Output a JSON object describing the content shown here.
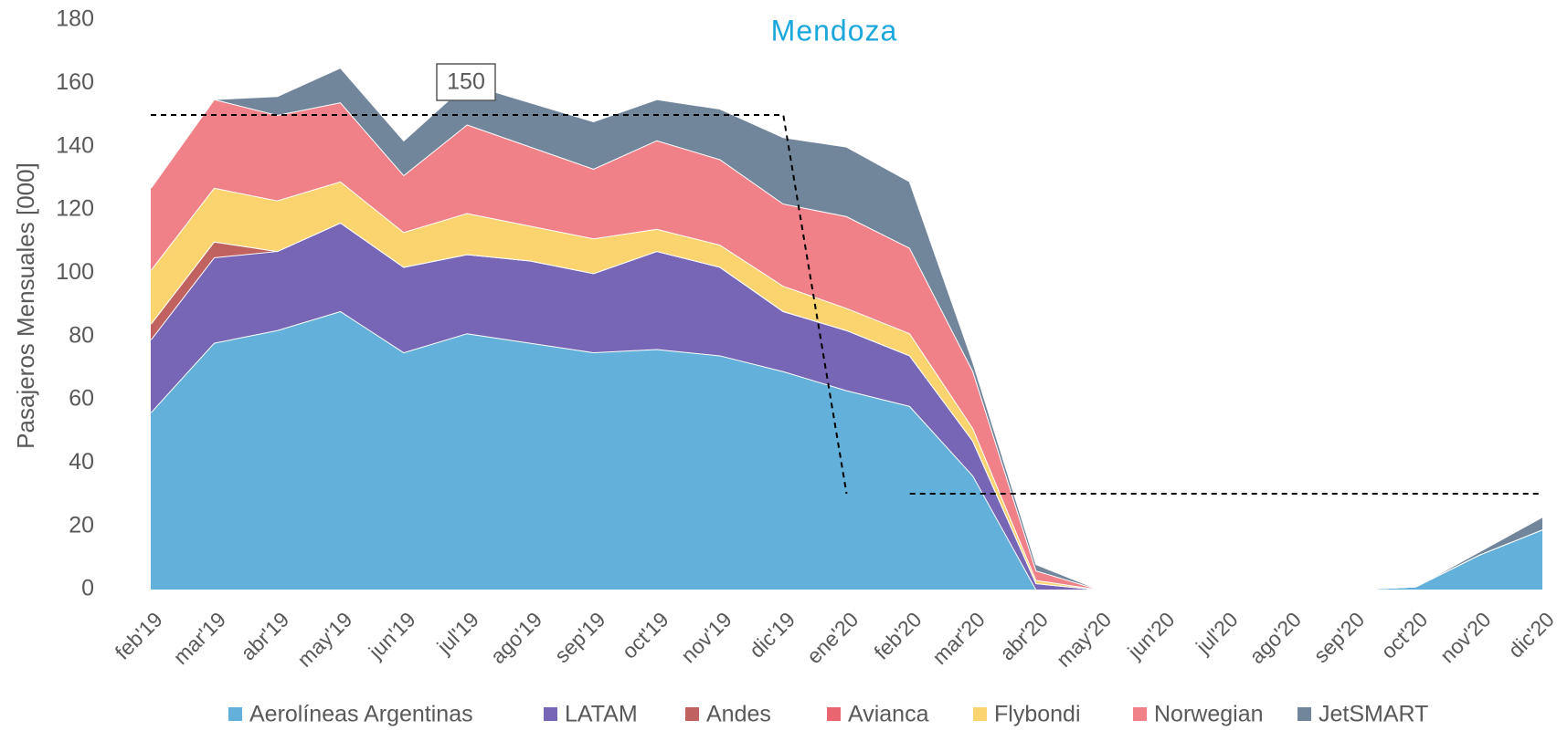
{
  "chart_data": {
    "type": "stacked_area",
    "title": "Mendoza",
    "y_label": "Pasajeros Mensuales [000]",
    "categories": [
      "feb'19",
      "mar'19",
      "abr'19",
      "may'19",
      "jun'19",
      "jul'19",
      "ago'19",
      "sep'19",
      "oct'19",
      "nov'19",
      "dic'19",
      "ene'20",
      "feb'20",
      "mar'20",
      "abr'20",
      "may'20",
      "jun'20",
      "jul'20",
      "ago'20",
      "sep'20",
      "oct'20",
      "nov'20",
      "dic'20"
    ],
    "series": [
      {
        "name": "Aerolíneas Argentinas",
        "color": "#63b1da",
        "values": [
          56,
          78,
          82,
          88,
          75,
          81,
          78,
          75,
          76,
          74,
          69,
          63,
          58,
          36,
          0,
          0,
          0,
          0,
          0,
          0,
          1,
          11,
          19
        ]
      },
      {
        "name": "LATAM",
        "color": "#7765b5",
        "values": [
          23,
          27,
          25,
          28,
          27,
          25,
          26,
          25,
          31,
          28,
          19,
          19,
          16,
          11,
          2,
          0,
          0,
          0,
          0,
          0,
          0,
          0,
          0
        ]
      },
      {
        "name": "Andes",
        "color": "#c0625f",
        "values": [
          5,
          5,
          0,
          0,
          0,
          0,
          0,
          0,
          0,
          0,
          0,
          0,
          0,
          0,
          0,
          0,
          0,
          0,
          0,
          0,
          0,
          0,
          0
        ]
      },
      {
        "name": "Avianca",
        "color": "#e9656f",
        "values": [
          0,
          0,
          0,
          0,
          0,
          0,
          0,
          0,
          0,
          0,
          0,
          0,
          0,
          0,
          0,
          0,
          0,
          0,
          0,
          0,
          0,
          0,
          0
        ]
      },
      {
        "name": "Flybondi",
        "color": "#fbd36f",
        "values": [
          17,
          17,
          16,
          13,
          11,
          13,
          11,
          11,
          7,
          7,
          8,
          7,
          7,
          4,
          1,
          0,
          0,
          0,
          0,
          0,
          0,
          0,
          0
        ]
      },
      {
        "name": "Norwegian",
        "color": "#f08189",
        "values": [
          26,
          28,
          27,
          25,
          18,
          28,
          25,
          22,
          28,
          27,
          26,
          29,
          27,
          18,
          3,
          0,
          0,
          0,
          0,
          0,
          0,
          0,
          0
        ]
      },
      {
        "name": "JetSMART",
        "color": "#72869b",
        "values": [
          0,
          0,
          6,
          11,
          11,
          13,
          14,
          15,
          13,
          16,
          21,
          22,
          21,
          3,
          2,
          0,
          0,
          0,
          0,
          0,
          0,
          1,
          4
        ]
      }
    ],
    "ylim": [
      0,
      180
    ],
    "yticks": [
      0,
      20,
      40,
      60,
      80,
      100,
      120,
      140,
      160,
      180
    ],
    "annotation": 150,
    "legend": "bottom"
  }
}
